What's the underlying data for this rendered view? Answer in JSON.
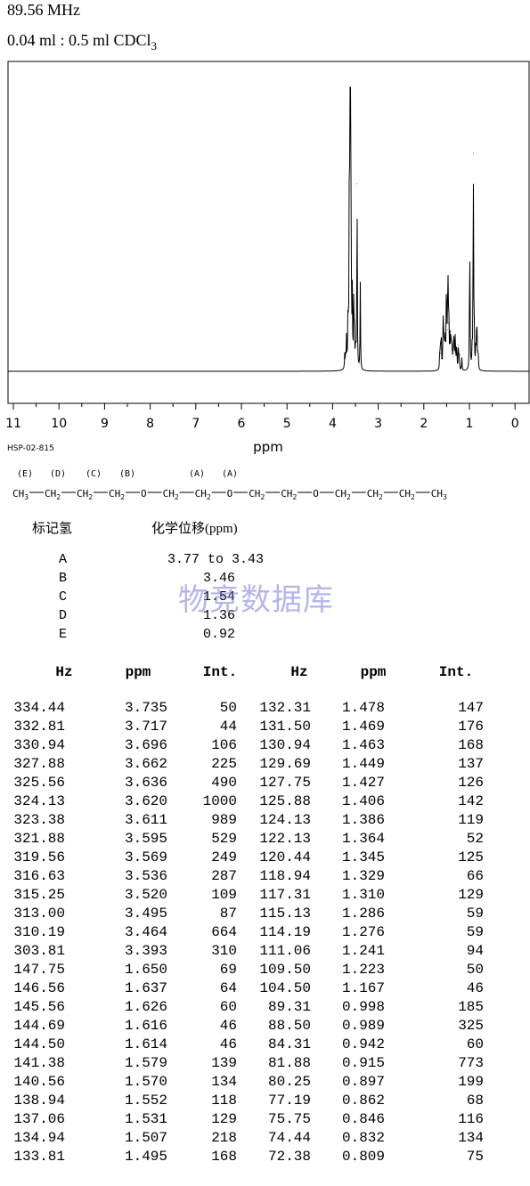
{
  "header": {
    "frequency": "89.56 MHz",
    "sample_prefix": "0.04 ml : 0.5 ml CDCl",
    "sample_sub": "3"
  },
  "chart_data": {
    "type": "line",
    "title": "",
    "xlabel": "ppm",
    "ylabel": "",
    "xlim": [
      11,
      0
    ],
    "x_reversed": true,
    "xticks": [
      "11",
      "10",
      "9",
      "8",
      "7",
      "6",
      "5",
      "4",
      "3",
      "2",
      "1",
      "0"
    ],
    "grid": false,
    "series": [
      {
        "peaks": [
          {
            "ppm": 3.735,
            "intensity": 50
          },
          {
            "ppm": 3.717,
            "intensity": 44
          },
          {
            "ppm": 3.696,
            "intensity": 106
          },
          {
            "ppm": 3.662,
            "intensity": 225
          },
          {
            "ppm": 3.636,
            "intensity": 490
          },
          {
            "ppm": 3.62,
            "intensity": 1000
          },
          {
            "ppm": 3.611,
            "intensity": 989
          },
          {
            "ppm": 3.595,
            "intensity": 529
          },
          {
            "ppm": 3.569,
            "intensity": 249
          },
          {
            "ppm": 3.536,
            "intensity": 287
          },
          {
            "ppm": 3.52,
            "intensity": 109
          },
          {
            "ppm": 3.495,
            "intensity": 87
          },
          {
            "ppm": 3.464,
            "intensity": 664
          },
          {
            "ppm": 3.393,
            "intensity": 310
          },
          {
            "ppm": 1.65,
            "intensity": 69
          },
          {
            "ppm": 1.637,
            "intensity": 64
          },
          {
            "ppm": 1.626,
            "intensity": 60
          },
          {
            "ppm": 1.616,
            "intensity": 46
          },
          {
            "ppm": 1.614,
            "intensity": 46
          },
          {
            "ppm": 1.579,
            "intensity": 139
          },
          {
            "ppm": 1.57,
            "intensity": 134
          },
          {
            "ppm": 1.552,
            "intensity": 118
          },
          {
            "ppm": 1.531,
            "intensity": 129
          },
          {
            "ppm": 1.507,
            "intensity": 218
          },
          {
            "ppm": 1.495,
            "intensity": 168
          },
          {
            "ppm": 1.478,
            "intensity": 147
          },
          {
            "ppm": 1.469,
            "intensity": 176
          },
          {
            "ppm": 1.463,
            "intensity": 168
          },
          {
            "ppm": 1.449,
            "intensity": 137
          },
          {
            "ppm": 1.427,
            "intensity": 126
          },
          {
            "ppm": 1.406,
            "intensity": 142
          },
          {
            "ppm": 1.386,
            "intensity": 119
          },
          {
            "ppm": 1.364,
            "intensity": 52
          },
          {
            "ppm": 1.345,
            "intensity": 125
          },
          {
            "ppm": 1.329,
            "intensity": 66
          },
          {
            "ppm": 1.31,
            "intensity": 129
          },
          {
            "ppm": 1.286,
            "intensity": 59
          },
          {
            "ppm": 1.276,
            "intensity": 59
          },
          {
            "ppm": 1.241,
            "intensity": 94
          },
          {
            "ppm": 1.223,
            "intensity": 50
          },
          {
            "ppm": 1.167,
            "intensity": 46
          },
          {
            "ppm": 0.998,
            "intensity": 185
          },
          {
            "ppm": 0.989,
            "intensity": 325
          },
          {
            "ppm": 0.942,
            "intensity": 60
          },
          {
            "ppm": 0.915,
            "intensity": 773
          },
          {
            "ppm": 0.897,
            "intensity": 199
          },
          {
            "ppm": 0.862,
            "intensity": 68
          },
          {
            "ppm": 0.846,
            "intensity": 116
          },
          {
            "ppm": 0.832,
            "intensity": 134
          },
          {
            "ppm": 0.809,
            "intensity": 75
          }
        ]
      }
    ]
  },
  "code": "HSP-02-815",
  "structure": {
    "labels": [
      "(E)",
      "(D)",
      "(C)",
      "(B)",
      "(A)",
      "(A)"
    ],
    "groups": [
      "CH3",
      "CH2",
      "CH2",
      "CH2",
      "O",
      "CH2",
      "CH2",
      "O",
      "CH2",
      "CH2",
      "O",
      "CH2",
      "CH2",
      "CH2",
      "CH3"
    ]
  },
  "assignment": {
    "header_label": "标记氢",
    "header_shift": "化学位移(ppm)",
    "rows": [
      {
        "label": "A",
        "value": "3.77 to 3.43"
      },
      {
        "label": "B",
        "value": "3.46"
      },
      {
        "label": "C",
        "value": "1.54"
      },
      {
        "label": "D",
        "value": "1.36"
      },
      {
        "label": "E",
        "value": "0.92"
      }
    ]
  },
  "watermark": "物竞数据库",
  "peak_table": {
    "headers": [
      "Hz",
      "ppm",
      "Int.",
      "Hz",
      "ppm",
      "Int."
    ],
    "rows": [
      [
        "334.44",
        "3.735",
        "50",
        "132.31",
        "1.478",
        "147"
      ],
      [
        "332.81",
        "3.717",
        "44",
        "131.50",
        "1.469",
        "176"
      ],
      [
        "330.94",
        "3.696",
        "106",
        "130.94",
        "1.463",
        "168"
      ],
      [
        "327.88",
        "3.662",
        "225",
        "129.69",
        "1.449",
        "137"
      ],
      [
        "325.56",
        "3.636",
        "490",
        "127.75",
        "1.427",
        "126"
      ],
      [
        "324.13",
        "3.620",
        "1000",
        "125.88",
        "1.406",
        "142"
      ],
      [
        "323.38",
        "3.611",
        "989",
        "124.13",
        "1.386",
        "119"
      ],
      [
        "321.88",
        "3.595",
        "529",
        "122.13",
        "1.364",
        "52"
      ],
      [
        "319.56",
        "3.569",
        "249",
        "120.44",
        "1.345",
        "125"
      ],
      [
        "316.63",
        "3.536",
        "287",
        "118.94",
        "1.329",
        "66"
      ],
      [
        "315.25",
        "3.520",
        "109",
        "117.31",
        "1.310",
        "129"
      ],
      [
        "313.00",
        "3.495",
        "87",
        "115.13",
        "1.286",
        "59"
      ],
      [
        "310.19",
        "3.464",
        "664",
        "114.19",
        "1.276",
        "59"
      ],
      [
        "303.81",
        "3.393",
        "310",
        "111.06",
        "1.241",
        "94"
      ],
      [
        "147.75",
        "1.650",
        "69",
        "109.50",
        "1.223",
        "50"
      ],
      [
        "146.56",
        "1.637",
        "64",
        "104.50",
        "1.167",
        "46"
      ],
      [
        "145.56",
        "1.626",
        "60",
        "89.31",
        "0.998",
        "185"
      ],
      [
        "144.69",
        "1.616",
        "46",
        "88.50",
        "0.989",
        "325"
      ],
      [
        "144.50",
        "1.614",
        "46",
        "84.31",
        "0.942",
        "60"
      ],
      [
        "141.38",
        "1.579",
        "139",
        "81.88",
        "0.915",
        "773"
      ],
      [
        "140.56",
        "1.570",
        "134",
        "80.25",
        "0.897",
        "199"
      ],
      [
        "138.94",
        "1.552",
        "118",
        "77.19",
        "0.862",
        "68"
      ],
      [
        "137.06",
        "1.531",
        "129",
        "75.75",
        "0.846",
        "116"
      ],
      [
        "134.94",
        "1.507",
        "218",
        "74.44",
        "0.832",
        "134"
      ],
      [
        "133.81",
        "1.495",
        "168",
        "72.38",
        "0.809",
        "75"
      ]
    ]
  }
}
